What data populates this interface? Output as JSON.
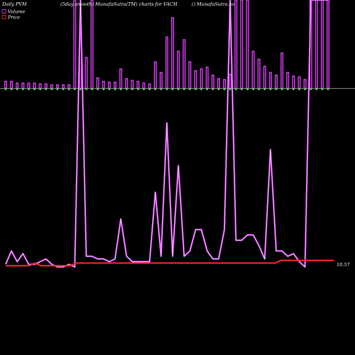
{
  "chart_data": {
    "type": "bar",
    "header": {
      "left": "Daily PVM",
      "middle": "(5day smooth) MunafaSutra(TM) charts for VACH",
      "right": "() MunafaSutra.co"
    },
    "legend": [
      {
        "label": "Volume",
        "color": "#e040fb"
      },
      {
        "label": "Price",
        "color": "#ff2a2a"
      }
    ],
    "last_price_label": "10.57",
    "colors": {
      "background": "#000000",
      "volume_bar": "#e040fb",
      "bar_base_marker": "#3ddc3d",
      "pvm_line": "#e040fb",
      "pvm_line_inner": "#ffffff",
      "price_line": "#ff2a2a",
      "baseline": "#b0b0b0"
    },
    "volume": {
      "ylim": [
        0,
        100
      ],
      "values": [
        8,
        8,
        6,
        6,
        6,
        6,
        5,
        5,
        4,
        4,
        4,
        4,
        100,
        60,
        35,
        100,
        12,
        8,
        7,
        7,
        22,
        11,
        9,
        8,
        6,
        5,
        30,
        18,
        58,
        80,
        42,
        55,
        30,
        20,
        22,
        24,
        15,
        11,
        10,
        16,
        100,
        100,
        100,
        42,
        33,
        25,
        18,
        15,
        40,
        18,
        14,
        13,
        10,
        100,
        100,
        100,
        100
      ]
    },
    "pvm": {
      "ylim": [
        0,
        100
      ],
      "values": [
        1,
        6,
        2,
        5,
        1,
        1,
        2,
        3,
        1,
        0,
        0,
        1,
        0,
        100,
        4,
        4,
        3,
        3,
        2,
        3,
        18,
        4,
        2,
        2,
        2,
        2,
        28,
        4,
        54,
        4,
        38,
        4,
        6,
        14,
        14,
        6,
        3,
        3,
        14,
        100,
        10,
        10,
        12,
        12,
        8,
        3,
        44,
        6,
        6,
        4,
        5,
        2,
        0,
        100,
        100,
        100,
        100
      ]
    },
    "price": {
      "ylim": [
        0,
        100
      ],
      "values": [
        1,
        1,
        1,
        1,
        1,
        2,
        1,
        1,
        1,
        1,
        1,
        1,
        2,
        2,
        2,
        2,
        2,
        2,
        2,
        2,
        2,
        2,
        2,
        2,
        2,
        2,
        2,
        2,
        2,
        2,
        2,
        2,
        2,
        2,
        2,
        2,
        2,
        2,
        2,
        2,
        2,
        2,
        2,
        2,
        2,
        2,
        2,
        3,
        3,
        3,
        3,
        3,
        3,
        3,
        3,
        3,
        3
      ]
    }
  }
}
